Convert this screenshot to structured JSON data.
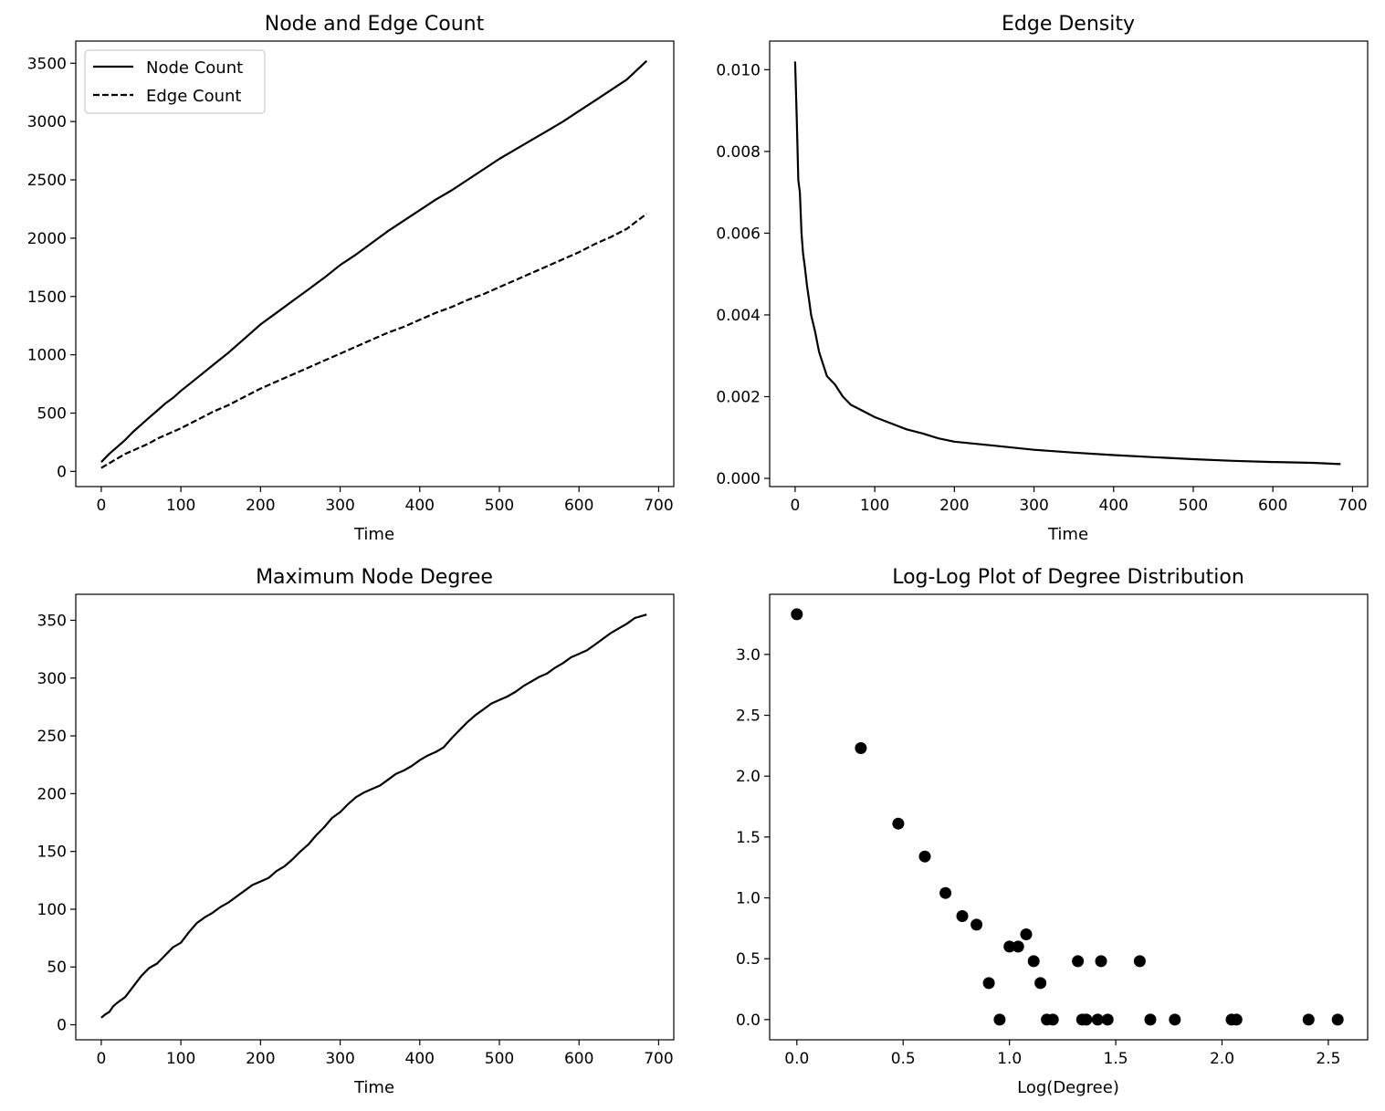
{
  "figure": {
    "background": "#ffffff",
    "line_color": "#000000"
  },
  "chart_data": [
    {
      "id": "node-edge",
      "type": "line",
      "title": "Node and Edge Count",
      "xlabel": "Time",
      "ylabel": "",
      "xlim": [
        -32,
        719
      ],
      "ylim": [
        -130,
        3690
      ],
      "xticks": [
        0,
        100,
        200,
        300,
        400,
        500,
        600,
        700
      ],
      "yticks": [
        0,
        500,
        1000,
        1500,
        2000,
        2500,
        3000,
        3500
      ],
      "legend": {
        "position": "top-left"
      },
      "series": [
        {
          "name": "Node Count",
          "style": "solid",
          "x": [
            0,
            10,
            20,
            30,
            40,
            50,
            60,
            70,
            80,
            90,
            100,
            120,
            140,
            160,
            180,
            200,
            220,
            240,
            260,
            280,
            300,
            320,
            340,
            360,
            380,
            400,
            420,
            440,
            460,
            480,
            500,
            520,
            540,
            560,
            580,
            600,
            620,
            640,
            660,
            685
          ],
          "y": [
            80,
            150,
            210,
            270,
            340,
            400,
            460,
            520,
            580,
            630,
            690,
            800,
            910,
            1020,
            1140,
            1260,
            1360,
            1460,
            1560,
            1660,
            1770,
            1860,
            1960,
            2060,
            2150,
            2240,
            2330,
            2410,
            2500,
            2590,
            2680,
            2760,
            2840,
            2920,
            3000,
            3090,
            3180,
            3270,
            3360,
            3520
          ]
        },
        {
          "name": "Edge Count",
          "style": "dashed",
          "x": [
            0,
            10,
            20,
            30,
            40,
            50,
            60,
            70,
            80,
            90,
            100,
            120,
            140,
            160,
            180,
            200,
            220,
            240,
            260,
            280,
            300,
            320,
            340,
            360,
            380,
            400,
            420,
            440,
            460,
            480,
            500,
            520,
            540,
            560,
            580,
            600,
            620,
            640,
            660,
            685
          ],
          "y": [
            30,
            70,
            110,
            150,
            180,
            210,
            240,
            280,
            310,
            340,
            370,
            440,
            510,
            570,
            640,
            710,
            770,
            830,
            890,
            950,
            1010,
            1070,
            1130,
            1190,
            1240,
            1300,
            1360,
            1410,
            1470,
            1520,
            1580,
            1640,
            1700,
            1760,
            1820,
            1880,
            1950,
            2010,
            2080,
            2210
          ]
        }
      ]
    },
    {
      "id": "edge-density",
      "type": "line",
      "title": "Edge Density",
      "xlabel": "Time",
      "ylabel": "",
      "xlim": [
        -32,
        719
      ],
      "ylim": [
        -0.0002,
        0.0107
      ],
      "xticks": [
        0,
        100,
        200,
        300,
        400,
        500,
        600,
        700
      ],
      "yticks": [
        0.0,
        0.002,
        0.004,
        0.006,
        0.008,
        0.01
      ],
      "ytick_labels": [
        "0.000",
        "0.002",
        "0.004",
        "0.006",
        "0.008",
        "0.010"
      ],
      "series": [
        {
          "name": "",
          "style": "solid",
          "x": [
            0,
            2,
            4,
            6,
            8,
            10,
            12,
            15,
            18,
            20,
            25,
            30,
            35,
            40,
            50,
            60,
            70,
            80,
            90,
            100,
            120,
            140,
            160,
            180,
            200,
            250,
            300,
            350,
            400,
            450,
            500,
            550,
            600,
            650,
            685
          ],
          "y": [
            0.0102,
            0.0088,
            0.0073,
            0.007,
            0.006,
            0.0055,
            0.0052,
            0.0047,
            0.0043,
            0.004,
            0.0036,
            0.0031,
            0.0028,
            0.0025,
            0.0023,
            0.002,
            0.0018,
            0.0017,
            0.0016,
            0.0015,
            0.00135,
            0.0012,
            0.0011,
            0.00098,
            0.0009,
            0.0008,
            0.0007,
            0.00063,
            0.00057,
            0.00052,
            0.00047,
            0.00043,
            0.0004,
            0.00038,
            0.00035
          ]
        }
      ]
    },
    {
      "id": "max-degree",
      "type": "line",
      "title": "Maximum Node Degree",
      "xlabel": "Time",
      "ylabel": "",
      "xlim": [
        -32,
        719
      ],
      "ylim": [
        -13,
        372.5
      ],
      "xticks": [
        0,
        100,
        200,
        300,
        400,
        500,
        600,
        700
      ],
      "yticks": [
        0,
        50,
        100,
        150,
        200,
        250,
        300,
        350
      ],
      "series": [
        {
          "name": "",
          "style": "solid",
          "x": [
            0,
            5,
            10,
            15,
            20,
            30,
            40,
            50,
            60,
            70,
            80,
            90,
            100,
            110,
            120,
            130,
            140,
            150,
            160,
            170,
            180,
            190,
            200,
            210,
            220,
            230,
            240,
            250,
            260,
            270,
            280,
            290,
            300,
            310,
            320,
            330,
            340,
            350,
            360,
            370,
            380,
            390,
            400,
            410,
            420,
            430,
            440,
            450,
            460,
            470,
            480,
            490,
            500,
            510,
            520,
            530,
            540,
            550,
            560,
            570,
            580,
            590,
            600,
            610,
            620,
            630,
            640,
            650,
            660,
            670,
            685
          ],
          "y": [
            6,
            9,
            11,
            16,
            19,
            24,
            33,
            42,
            49,
            53,
            60,
            67,
            71,
            80,
            88,
            93,
            97,
            102,
            106,
            111,
            116,
            121,
            124,
            127,
            133,
            137,
            143,
            150,
            156,
            164,
            171,
            179,
            184,
            191,
            197,
            201,
            204,
            207,
            212,
            217,
            220,
            224,
            229,
            233,
            236,
            240,
            248,
            255,
            262,
            268,
            273,
            278,
            281,
            284,
            288,
            293,
            297,
            301,
            304,
            309,
            313,
            318,
            321,
            324,
            329,
            334,
            339,
            343,
            347,
            352,
            355
          ]
        }
      ]
    },
    {
      "id": "degree-dist",
      "type": "scatter",
      "title": "Log-Log Plot of Degree Distribution",
      "xlabel": "Log(Degree)",
      "ylabel": "",
      "xlim": [
        -0.128,
        2.685
      ],
      "ylim": [
        -0.166,
        3.494
      ],
      "xticks": [
        0.0,
        0.5,
        1.0,
        1.5,
        2.0,
        2.5
      ],
      "xtick_labels": [
        "0.0",
        "0.5",
        "1.0",
        "1.5",
        "2.0",
        "2.5"
      ],
      "yticks": [
        0.0,
        0.5,
        1.0,
        1.5,
        2.0,
        2.5,
        3.0
      ],
      "ytick_labels": [
        "0.0",
        "0.5",
        "1.0",
        "1.5",
        "2.0",
        "2.5",
        "3.0"
      ],
      "points": [
        [
          0.0,
          3.33
        ],
        [
          0.301,
          2.23
        ],
        [
          0.477,
          1.61
        ],
        [
          0.602,
          1.34
        ],
        [
          0.699,
          1.04
        ],
        [
          0.778,
          0.85
        ],
        [
          0.845,
          0.78
        ],
        [
          0.903,
          0.3
        ],
        [
          0.954,
          0.0
        ],
        [
          1.0,
          0.6
        ],
        [
          1.041,
          0.6
        ],
        [
          1.079,
          0.7
        ],
        [
          1.114,
          0.48
        ],
        [
          1.146,
          0.3
        ],
        [
          1.176,
          0.0
        ],
        [
          1.204,
          0.0
        ],
        [
          1.322,
          0.48
        ],
        [
          1.342,
          0.0
        ],
        [
          1.362,
          0.0
        ],
        [
          1.415,
          0.0
        ],
        [
          1.431,
          0.48
        ],
        [
          1.462,
          0.0
        ],
        [
          1.613,
          0.48
        ],
        [
          1.663,
          0.0
        ],
        [
          1.778,
          0.0
        ],
        [
          2.045,
          0.0
        ],
        [
          2.068,
          0.0
        ],
        [
          2.407,
          0.0
        ],
        [
          2.544,
          0.0
        ]
      ]
    }
  ]
}
